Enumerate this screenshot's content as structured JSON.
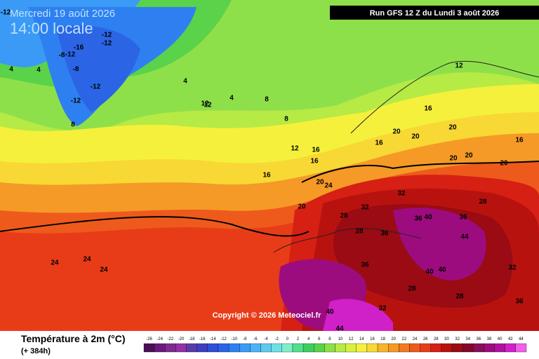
{
  "header": {
    "date": "Mercredi 19 août 2026",
    "time": "14:00 locale",
    "run": "Run GFS 12 Z du Lundi 3 août 2026",
    "copyright": "Copyright © 2026 Meteociel.fr"
  },
  "legend": {
    "title": "Température à 2m (°C)",
    "lead": "(+ 384h)",
    "ticks": [
      -26,
      -24,
      -22,
      -20,
      -18,
      -16,
      -14,
      -12,
      -10,
      -8,
      -6,
      -4,
      -2,
      0,
      2,
      4,
      6,
      8,
      10,
      12,
      14,
      16,
      18,
      20,
      22,
      24,
      26,
      28,
      30,
      32,
      34,
      36,
      38,
      40,
      42,
      44
    ],
    "colors": [
      "#4b0f55",
      "#6a1a7a",
      "#7f2a90",
      "#962fa6",
      "#5b3aa8",
      "#3d3fc0",
      "#2f4fd6",
      "#2b65e6",
      "#2e80f0",
      "#3a9af5",
      "#4cb3f7",
      "#5ccaf0",
      "#6de0e6",
      "#7ef0c8",
      "#4fe08a",
      "#3ccf60",
      "#5ad24a",
      "#8ee04a",
      "#b6ea45",
      "#d8f040",
      "#f5f03c",
      "#f8d834",
      "#f7b52c",
      "#f59a26",
      "#f27a20",
      "#ee5a1c",
      "#e83c18",
      "#d62014",
      "#b8120f",
      "#9a0b14",
      "#86062a",
      "#8a0d5a",
      "#9c0c7e",
      "#b010a0",
      "#d020c8",
      "#f060e8"
    ]
  },
  "map_labels": [
    -12,
    -8,
    -12,
    -16,
    -12,
    -12,
    -8,
    -12,
    -12,
    8,
    4,
    4,
    4,
    12,
    4,
    8,
    8,
    12,
    12,
    16,
    16,
    20,
    16,
    16,
    16,
    20,
    20,
    20,
    24,
    20,
    20,
    20,
    20,
    16,
    12,
    24,
    24,
    24,
    28,
    28,
    32,
    32,
    36,
    36,
    36,
    40,
    40,
    40,
    44,
    36,
    32,
    28,
    28,
    28,
    32,
    36,
    40,
    44
  ]
}
